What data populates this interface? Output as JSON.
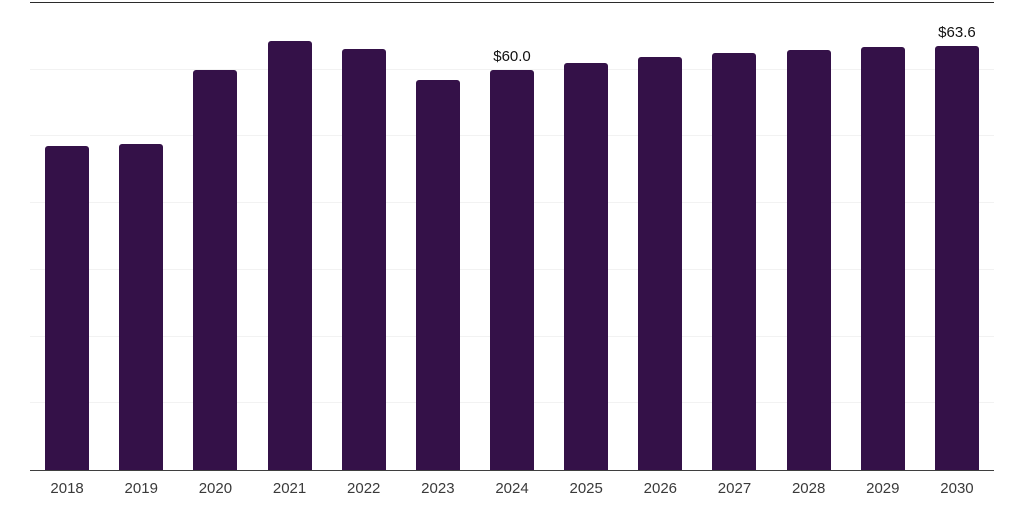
{
  "chart_data": {
    "type": "bar",
    "title": "",
    "xlabel": "",
    "ylabel": "",
    "categories": [
      "2018",
      "2019",
      "2020",
      "2021",
      "2022",
      "2023",
      "2024",
      "2025",
      "2026",
      "2027",
      "2028",
      "2029",
      "2030"
    ],
    "values": [
      48.6,
      48.9,
      60.0,
      64.3,
      63.1,
      58.5,
      60.0,
      61.0,
      61.9,
      62.5,
      63.0,
      63.4,
      63.6
    ],
    "data_labels": [
      null,
      null,
      null,
      null,
      null,
      null,
      "$60.0",
      null,
      null,
      null,
      null,
      null,
      "$63.6"
    ],
    "ylim": [
      0,
      70
    ],
    "gridline_step": 10,
    "grid": "horizontal",
    "legend": "none",
    "colors": {
      "bar": "#341148",
      "data_label": "#111111",
      "tick_label": "#3a3a3a",
      "gridline": "#f2f2f2",
      "axis_baseline": "#3f3f3f",
      "top_border": "#2b2b2b",
      "background": "#ffffff"
    }
  }
}
